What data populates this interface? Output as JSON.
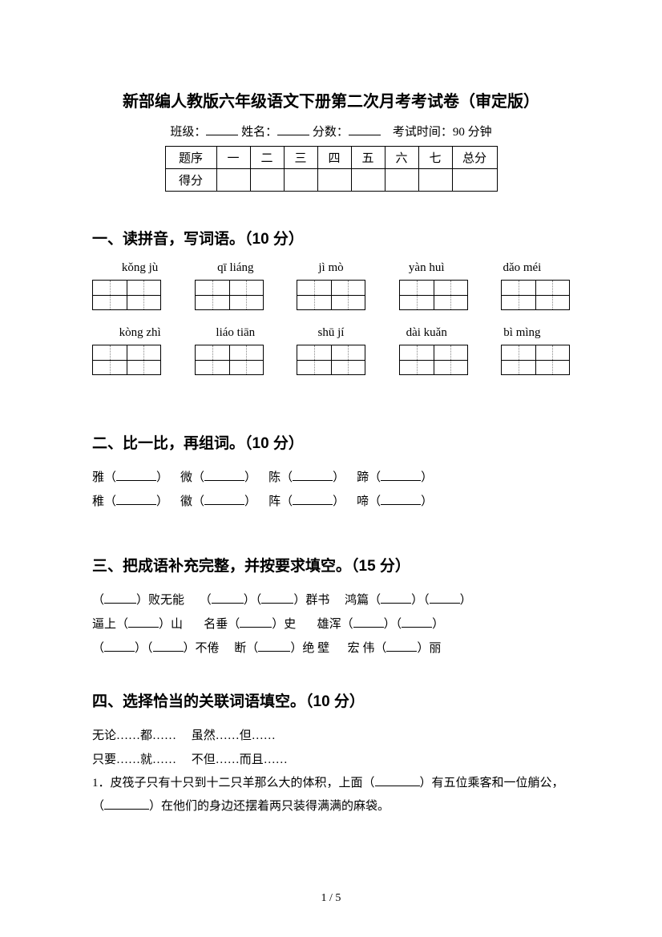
{
  "header": {
    "title": "新部编人教版六年级语文下册第二次月考考试卷（审定版）",
    "class_label": "班级：",
    "name_label": "姓名：",
    "score_label": "分数：",
    "time_label": "考试时间：90 分钟"
  },
  "score_table": {
    "row1": [
      "题序",
      "一",
      "二",
      "三",
      "四",
      "五",
      "六",
      "七",
      "总分"
    ],
    "row2_label": "得分"
  },
  "section1": {
    "heading": "一、读拼音，写词语。（10 分）",
    "row1_pinyin": [
      "kǒng jù",
      "qī liáng",
      "jì mò",
      "yàn huì",
      "dǎo méi"
    ],
    "row2_pinyin": [
      "kòng zhì",
      "liáo tiān",
      "shū jí",
      "dài kuǎn",
      "bì mìng"
    ]
  },
  "section2": {
    "heading": "二、比一比，再组词。（10 分）",
    "row1": [
      "雅（",
      "）",
      "微（",
      "）",
      "陈（",
      "）",
      "蹄（",
      "）"
    ],
    "row2": [
      "稚（",
      "）",
      "徽（",
      "）",
      "阵（",
      "）",
      "啼（",
      "）"
    ]
  },
  "section3": {
    "heading": "三、把成语补充完整，并按要求填空。（15 分）",
    "line1": {
      "a": "（",
      "b": "）败无能",
      "c": "（",
      "d": "）（",
      "e": "）群书",
      "f": "鸿篇（",
      "g": "）（",
      "h": "）"
    },
    "line2": {
      "a": "逼上（",
      "b": "）山",
      "c": "名垂（",
      "d": "）史",
      "e": "雄浑（",
      "f": "）（",
      "g": "）"
    },
    "line3": {
      "a": "（",
      "b": "）（",
      "c": "）不倦",
      "d": "断（",
      "e": "）绝 壁",
      "f": "宏 伟（",
      "g": "）丽"
    }
  },
  "section4": {
    "heading": "四、选择恰当的关联词语填空。（10 分）",
    "opt1": "无论……都……",
    "opt2": "虽然……但……",
    "opt3": "只要……就……",
    "opt4": "不但……而且……",
    "q1_a": "1．皮筏子只有十只到十二只羊那么大的体积，上面（",
    "q1_b": "）有五位乘客和一位艄公，（",
    "q1_c": "）在他们的身边还摆着两只装得满满的麻袋。"
  },
  "footer": {
    "page": "1 / 5"
  }
}
